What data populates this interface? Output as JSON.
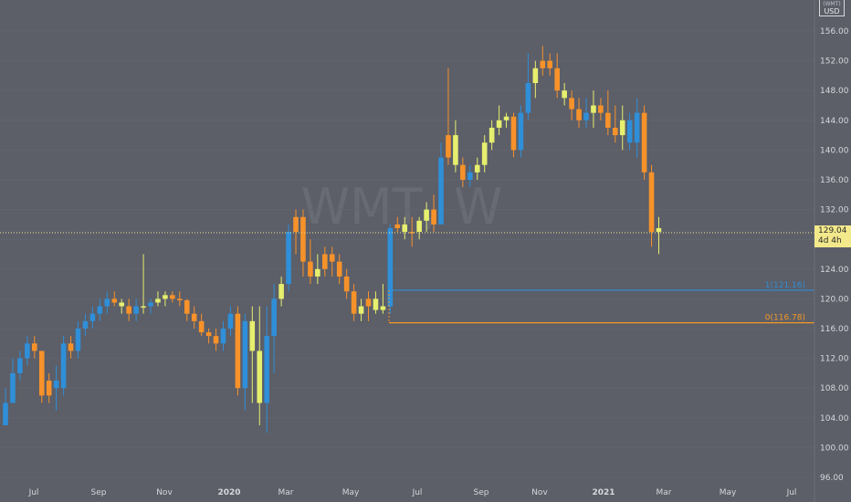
{
  "price_scale": {
    "currency": "USD",
    "partial_label": "(WMT)",
    "ticks": [
      "156.00",
      "152.00",
      "148.00",
      "144.00",
      "140.00",
      "136.00",
      "132.00",
      "128.00",
      "124.00",
      "120.00",
      "116.00",
      "112.00",
      "108.00",
      "104.00",
      "100.00",
      "96.00"
    ]
  },
  "time_scale": {
    "ticks": [
      "Jul",
      "Sep",
      "Nov",
      "2020",
      "Mar",
      "May",
      "Jul",
      "Sep",
      "Nov",
      "2021",
      "Mar",
      "May",
      "Jul"
    ]
  },
  "watermark": "WMT, W",
  "last_price": {
    "value": "129.04",
    "interval": "4d 4h"
  },
  "fib_levels": [
    {
      "label": "1(121.16)",
      "value": 121.16,
      "color": "#2f8fd8"
    },
    {
      "label": "0(116.78)",
      "value": 116.78,
      "color": "#f39a25"
    }
  ],
  "colors": {
    "background": "#5c5e68",
    "up": "#2f8fd8",
    "down": "#f7922a",
    "doji": "#e6ef6e",
    "last_price_line": "#f3e98b"
  },
  "chart_data": {
    "type": "candlestick",
    "title": "",
    "xlabel": "",
    "ylabel": "",
    "ylim": [
      95,
      158
    ],
    "x": [
      "2019-06",
      "2019-07",
      "2019-08",
      "2019-09",
      "2019-10",
      "2019-11",
      "2019-12",
      "2020-01",
      "2020-02",
      "2020-03",
      "2020-04",
      "2020-05",
      "2020-06",
      "2020-07",
      "2020-08",
      "2020-09",
      "2020-10",
      "2020-11",
      "2020-12",
      "2021-01",
      "2021-02",
      "2021-03"
    ],
    "series": [
      {
        "values": [
          [
            0,
            103,
            108,
            103,
            106,
            "u"
          ],
          [
            1,
            106,
            112,
            106,
            110,
            "u"
          ],
          [
            2,
            110,
            113,
            109,
            112,
            "u"
          ],
          [
            3,
            112,
            115,
            111,
            114,
            "u"
          ],
          [
            4,
            114,
            115,
            112,
            113,
            "d"
          ],
          [
            5,
            113,
            112,
            106,
            107,
            "d"
          ],
          [
            6,
            107,
            110,
            106,
            109,
            "d"
          ],
          [
            7,
            109,
            111,
            105,
            108,
            "u"
          ],
          [
            8,
            108,
            115,
            107,
            114,
            "u"
          ],
          [
            9,
            114,
            115,
            112,
            113,
            "d"
          ],
          [
            10,
            113,
            117,
            112,
            116,
            "u"
          ],
          [
            11,
            116,
            118,
            115,
            117,
            "u"
          ],
          [
            12,
            117,
            119,
            116,
            118,
            "u"
          ],
          [
            13,
            118,
            120,
            117,
            119,
            "u"
          ],
          [
            14,
            119,
            121,
            118,
            120,
            "u"
          ],
          [
            15,
            120,
            121,
            119,
            119.5,
            "d"
          ],
          [
            16,
            119.5,
            120,
            118,
            119,
            "y"
          ],
          [
            17,
            119,
            120,
            117,
            118,
            "d"
          ],
          [
            18,
            118,
            120,
            117,
            119,
            "u"
          ],
          [
            19,
            119,
            126,
            118,
            119,
            "y"
          ],
          [
            20,
            119,
            120,
            118,
            119.5,
            "u"
          ],
          [
            21,
            119.5,
            121,
            119,
            120,
            "y"
          ],
          [
            22,
            120,
            121,
            119,
            120.5,
            "y"
          ],
          [
            23,
            120.5,
            121,
            119.5,
            120,
            "d"
          ],
          [
            24,
            120,
            121,
            119,
            119.8,
            "d"
          ],
          [
            25,
            119.8,
            120,
            117,
            118,
            "d"
          ],
          [
            26,
            118,
            119,
            116,
            117,
            "d"
          ],
          [
            27,
            117,
            118,
            115,
            115.5,
            "d"
          ],
          [
            28,
            115.5,
            116,
            114,
            115,
            "d"
          ],
          [
            29,
            115,
            116,
            113,
            114,
            "d"
          ],
          [
            30,
            114,
            117,
            113,
            116,
            "u"
          ],
          [
            31,
            116,
            119,
            115,
            118,
            "u"
          ],
          [
            32,
            118,
            119,
            107,
            108,
            "d"
          ],
          [
            33,
            108,
            118,
            105,
            117,
            "u"
          ],
          [
            34,
            117,
            119,
            106,
            113,
            "y"
          ],
          [
            35,
            113,
            119,
            103,
            106,
            "y"
          ],
          [
            36,
            106,
            119,
            102,
            115,
            "u"
          ],
          [
            37,
            115,
            122,
            110,
            120,
            "u"
          ],
          [
            38,
            120,
            123,
            119,
            122,
            "y"
          ],
          [
            39,
            122,
            130,
            121,
            129,
            "u"
          ],
          [
            40,
            129,
            132,
            126,
            131,
            "d"
          ],
          [
            41,
            131,
            132,
            123,
            125,
            "d"
          ],
          [
            42,
            125,
            128,
            122,
            123,
            "d"
          ],
          [
            43,
            123,
            126,
            122,
            124,
            "y"
          ],
          [
            44,
            124,
            127,
            123,
            126,
            "d"
          ],
          [
            45,
            126,
            127,
            123,
            125,
            "d"
          ],
          [
            46,
            125,
            126,
            122,
            123,
            "d"
          ],
          [
            47,
            123,
            124,
            120,
            121,
            "d"
          ],
          [
            48,
            121,
            122,
            117,
            118,
            "d"
          ],
          [
            49,
            118,
            120,
            117,
            119,
            "y"
          ],
          [
            50,
            119,
            121,
            117,
            120,
            "d"
          ],
          [
            51,
            120,
            121,
            118,
            118.5,
            "y"
          ],
          [
            52,
            118.5,
            122,
            118,
            119,
            "y"
          ],
          [
            53,
            119,
            130,
            118,
            129.5,
            "u"
          ],
          [
            54,
            129.5,
            131,
            129,
            130,
            "d"
          ],
          [
            55,
            130,
            131,
            128,
            129,
            "y"
          ],
          [
            56,
            129,
            131,
            127,
            129,
            "d"
          ],
          [
            57,
            129,
            131,
            128,
            130.5,
            "y"
          ],
          [
            58,
            130.5,
            133,
            129,
            132,
            "y"
          ],
          [
            59,
            132,
            134,
            129,
            130,
            "d"
          ],
          [
            60,
            130,
            141,
            130,
            139,
            "u"
          ],
          [
            61,
            139,
            151,
            138,
            142,
            "d"
          ],
          [
            62,
            142,
            144,
            137,
            138,
            "y"
          ],
          [
            63,
            138,
            139,
            135,
            136,
            "d"
          ],
          [
            64,
            136,
            138,
            135,
            137,
            "u"
          ],
          [
            65,
            137,
            139,
            136,
            138,
            "y"
          ],
          [
            66,
            138,
            142,
            137,
            141,
            "y"
          ],
          [
            67,
            141,
            144,
            140,
            143,
            "y"
          ],
          [
            68,
            143,
            146,
            142,
            144,
            "y"
          ],
          [
            69,
            144,
            145,
            143,
            144.5,
            "y"
          ],
          [
            70,
            144.5,
            145,
            139,
            140,
            "d"
          ],
          [
            71,
            140,
            146,
            139,
            145,
            "u"
          ],
          [
            72,
            145,
            153,
            144,
            149,
            "u"
          ],
          [
            73,
            149,
            152,
            147,
            151,
            "y"
          ],
          [
            74,
            151,
            154,
            150,
            152,
            "d"
          ],
          [
            75,
            152,
            153,
            150,
            151,
            "d"
          ],
          [
            76,
            151,
            153,
            147,
            148,
            "d"
          ],
          [
            77,
            148,
            149,
            146,
            147,
            "y"
          ],
          [
            78,
            147,
            148,
            144,
            145.5,
            "d"
          ],
          [
            79,
            145.5,
            147,
            143,
            144,
            "d"
          ],
          [
            80,
            144,
            147,
            143,
            145,
            "u"
          ],
          [
            81,
            145,
            148,
            143,
            146,
            "y"
          ],
          [
            82,
            146,
            147,
            144,
            145,
            "d"
          ],
          [
            83,
            145,
            148,
            142,
            143,
            "d"
          ],
          [
            84,
            143,
            146,
            141,
            142,
            "d"
          ],
          [
            85,
            142,
            146,
            140,
            144,
            "y"
          ],
          [
            86,
            144,
            145,
            140,
            141,
            "u"
          ],
          [
            87,
            141,
            147,
            139,
            145,
            "u"
          ],
          [
            88,
            145,
            146,
            136,
            137,
            "d"
          ],
          [
            89,
            137,
            138,
            127,
            129,
            "d"
          ],
          [
            90,
            129,
            131,
            126,
            129.5,
            "y"
          ]
        ]
      }
    ]
  }
}
